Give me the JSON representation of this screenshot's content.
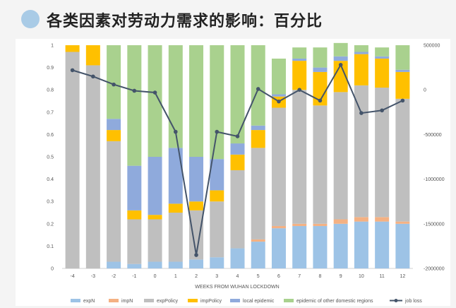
{
  "slide": {
    "title": "各类因素对劳动力需求的影响：百分比"
  },
  "chart_data": {
    "type": "bar",
    "stacked": true,
    "categories": [
      "-4",
      "-3",
      "-2",
      "-1",
      "0",
      "1",
      "2",
      "3",
      "4",
      "5",
      "6",
      "7",
      "8",
      "9",
      "10",
      "11",
      "12"
    ],
    "xlabel": "WEEKS FROM WUHAN LOCKDOWN",
    "ylim": [
      0,
      1
    ],
    "y_ticks": [
      "0",
      "0.1",
      "0.2",
      "0.3",
      "0.4",
      "0.5",
      "0.6",
      "0.7",
      "0.8",
      "0.9",
      "1"
    ],
    "y2lim": [
      -2000000,
      500000
    ],
    "y2_ticks": [
      "-2000000",
      "-1500000",
      "-1000000",
      "-500000",
      "0",
      "500000"
    ],
    "grid": false,
    "legend_position": "bottom",
    "series": [
      {
        "name": "expN",
        "color": "#9dc3e6",
        "values": [
          0,
          0,
          0.03,
          0.02,
          0.03,
          0.03,
          0.04,
          0.05,
          0.09,
          0.12,
          0.18,
          0.19,
          0.19,
          0.2,
          0.21,
          0.21,
          0.2
        ]
      },
      {
        "name": "impN",
        "color": "#f4b183",
        "values": [
          0,
          0,
          0,
          0,
          0,
          0,
          0,
          0,
          0,
          0.01,
          0.01,
          0.01,
          0.01,
          0.02,
          0.02,
          0.02,
          0.01
        ]
      },
      {
        "name": "expPolicy",
        "color": "#bfbfbf",
        "values": [
          0.97,
          0.91,
          0.54,
          0.2,
          0.19,
          0.22,
          0.22,
          0.25,
          0.35,
          0.41,
          0.53,
          0.6,
          0.53,
          0.57,
          0.59,
          0.58,
          0.55
        ]
      },
      {
        "name": "impPolicy",
        "color": "#ffc000",
        "values": [
          0.03,
          0.09,
          0.05,
          0.04,
          0.02,
          0.04,
          0.04,
          0.05,
          0.07,
          0.08,
          0.05,
          0.13,
          0.15,
          0.14,
          0.14,
          0.13,
          0.12
        ]
      },
      {
        "name": "local epidemic",
        "color": "#8faadc",
        "values": [
          0,
          0,
          0.05,
          0.2,
          0.26,
          0.25,
          0.2,
          0.14,
          0.05,
          0.02,
          0.01,
          0.01,
          0.02,
          0.02,
          0.01,
          0.01,
          0.01
        ]
      },
      {
        "name": "epidemic of other domestic regions",
        "color": "#a9d18e",
        "values": [
          0,
          0,
          0.33,
          0.54,
          0.5,
          0.46,
          0.5,
          0.51,
          0.44,
          0.36,
          0.16,
          0.05,
          0.09,
          0.06,
          0.03,
          0.04,
          0.11
        ]
      }
    ],
    "line_series": {
      "name": "job loss",
      "color": "#44546a",
      "axis": "right",
      "values": [
        220000,
        150000,
        60000,
        -10000,
        -30000,
        -470000,
        -1850000,
        -470000,
        -520000,
        10000,
        -130000,
        0,
        -120000,
        280000,
        -260000,
        -230000,
        -120000
      ]
    }
  }
}
